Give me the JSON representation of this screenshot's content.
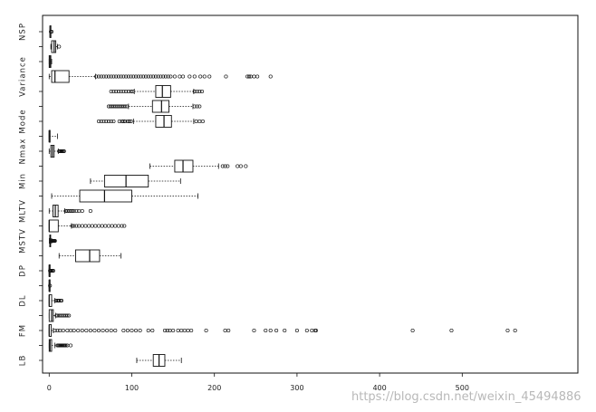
{
  "chart_data": {
    "type": "boxplot",
    "orientation": "horizontal",
    "xlim": [
      -8,
      640
    ],
    "x_ticks": [
      0,
      100,
      200,
      300,
      400,
      500
    ],
    "y_tick_labels": [
      "LB",
      "FM",
      "DL",
      "DP",
      "MSTV",
      "MLTV",
      "Min",
      "Nmax",
      "Mode",
      "Variance",
      "NSP"
    ],
    "rows": [
      {
        "label": "LB",
        "min": 106,
        "q1": 126,
        "median": 133,
        "q3": 140,
        "max": 160,
        "outliers": []
      },
      {
        "label": "",
        "min": 0,
        "q1": 0,
        "median": 1,
        "q3": 3,
        "max": 7,
        "outliers": [
          10,
          11,
          12,
          13,
          14,
          15,
          16,
          17,
          18,
          19,
          20,
          22,
          26
        ]
      },
      {
        "label": "FM",
        "min": 0,
        "q1": 0,
        "median": 0,
        "q3": 2.5,
        "max": 5,
        "outliers": [
          7,
          10,
          13,
          17,
          22,
          26,
          30,
          35,
          40,
          45,
          50,
          55,
          60,
          65,
          70,
          75,
          80,
          90,
          95,
          100,
          105,
          110,
          120,
          125,
          140,
          143,
          146,
          150,
          156,
          160,
          164,
          168,
          172,
          190,
          213,
          217,
          248,
          262,
          268,
          275,
          285,
          300,
          312,
          318,
          322,
          323,
          440,
          487,
          555,
          564
        ]
      },
      {
        "label": "",
        "min": 0,
        "q1": 0,
        "median": 3,
        "q3": 5,
        "max": 8,
        "outliers": [
          9,
          10,
          12,
          14,
          16,
          18,
          20,
          22,
          24
        ]
      },
      {
        "label": "DL",
        "min": 0,
        "q1": 0,
        "median": 0,
        "q3": 3,
        "max": 7,
        "outliers": [
          8,
          10,
          11,
          12,
          14,
          15
        ]
      },
      {
        "label": "",
        "min": 0,
        "q1": 0,
        "median": 0,
        "q3": 0,
        "max": 0,
        "outliers": [
          1
        ]
      },
      {
        "label": "DP",
        "min": 0,
        "q1": 0,
        "median": 0,
        "q3": 0,
        "max": 0,
        "outliers": [
          1,
          2,
          3,
          4,
          5
        ]
      },
      {
        "label": "",
        "min": 12,
        "q1": 32,
        "median": 49,
        "q3": 61,
        "max": 87,
        "outliers": []
      },
      {
        "label": "MSTV",
        "min": 0.2,
        "q1": 0.7,
        "median": 1.2,
        "q3": 1.7,
        "max": 3,
        "outliers": [
          3.5,
          4,
          4.5,
          5,
          5.5,
          6,
          6.5,
          7
        ]
      },
      {
        "label": "",
        "min": 0,
        "q1": 0,
        "median": 0,
        "q3": 11,
        "max": 27,
        "outliers": [
          28,
          30,
          33,
          36,
          40,
          44,
          48,
          52,
          56,
          60,
          64,
          68,
          72,
          76,
          80,
          84,
          88,
          91
        ]
      },
      {
        "label": "MLTV",
        "min": 0,
        "q1": 4.6,
        "median": 7.4,
        "q3": 10.8,
        "max": 19,
        "outliers": [
          20,
          22,
          24,
          26,
          28,
          30,
          33,
          36,
          40,
          50
        ]
      },
      {
        "label": "",
        "min": 3,
        "q1": 37,
        "median": 67,
        "q3": 100,
        "max": 180,
        "outliers": []
      },
      {
        "label": "Min",
        "min": 50,
        "q1": 67,
        "median": 93,
        "q3": 120,
        "max": 159,
        "outliers": []
      },
      {
        "label": "",
        "min": 122,
        "q1": 152,
        "median": 162,
        "q3": 174,
        "max": 205,
        "outliers": [
          210,
          213,
          216,
          228,
          232,
          238
        ]
      },
      {
        "label": "Nmax",
        "min": 0,
        "q1": 2,
        "median": 4,
        "q3": 6,
        "max": 11,
        "outliers": [
          12,
          13,
          14,
          15,
          16,
          17,
          18
        ]
      },
      {
        "label": "",
        "min": 0,
        "q1": 0,
        "median": 0,
        "q3": 0,
        "max": 10,
        "outliers": []
      },
      {
        "label": "Mode",
        "min": 102,
        "q1": 129,
        "median": 139,
        "q3": 148,
        "max": 175,
        "outliers": [
          60,
          63,
          66,
          69,
          72,
          75,
          78,
          85,
          88,
          90,
          92,
          95,
          97,
          99,
          178,
          182,
          186
        ]
      },
      {
        "label": "",
        "min": 96,
        "q1": 125,
        "median": 136,
        "q3": 145,
        "max": 174,
        "outliers": [
          72,
          74,
          76,
          78,
          80,
          82,
          84,
          86,
          88,
          90,
          92,
          94,
          176,
          179,
          182
        ]
      },
      {
        "label": "",
        "min": 103,
        "q1": 129,
        "median": 137,
        "q3": 147,
        "max": 175,
        "outliers": [
          75,
          78,
          81,
          84,
          87,
          90,
          93,
          96,
          99,
          101,
          176,
          179,
          182,
          185
        ]
      },
      {
        "label": "Variance",
        "min": 0,
        "q1": 3,
        "median": 7,
        "q3": 24,
        "max": 56,
        "outliers": [
          57,
          60,
          63,
          66,
          69,
          72,
          75,
          78,
          81,
          84,
          87,
          90,
          93,
          96,
          99,
          102,
          105,
          108,
          111,
          114,
          117,
          120,
          123,
          126,
          129,
          132,
          135,
          138,
          141,
          144,
          147,
          152,
          158,
          162,
          170,
          176,
          183,
          188,
          194,
          214,
          240,
          242,
          244,
          248,
          252,
          268
        ]
      },
      {
        "label": "",
        "min": 0,
        "q1": 0,
        "median": 1,
        "q3": 2,
        "max": 3,
        "outliers": []
      },
      {
        "label": "",
        "min": 2,
        "q1": 3,
        "median": 6,
        "q3": 8,
        "max": 10,
        "outliers": [
          12
        ]
      },
      {
        "label": "NSP",
        "min": 1,
        "q1": 1,
        "median": 1,
        "q3": 1,
        "max": 1,
        "outliers": [
          2,
          3
        ]
      }
    ]
  },
  "watermark": "https://blog.csdn.net/weixin_45494886"
}
